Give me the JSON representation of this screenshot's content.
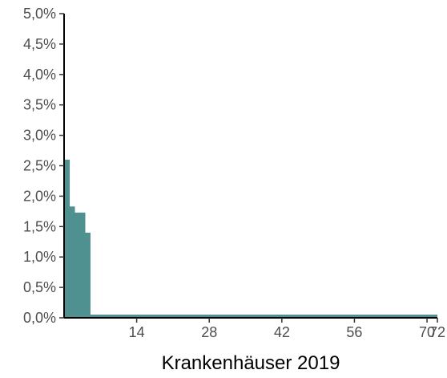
{
  "chart_data": {
    "type": "bar",
    "title": "",
    "xlabel": "Krankenhäuser 2019",
    "ylabel": "",
    "xlim": [
      0,
      72
    ],
    "ylim": [
      0,
      5
    ],
    "x_ticks": [
      14,
      28,
      42,
      56,
      70,
      72
    ],
    "x_tick_labels": [
      "14",
      "28",
      "42",
      "56",
      "70",
      "72"
    ],
    "y_ticks": [
      0,
      0.5,
      1,
      1.5,
      2,
      2.5,
      3,
      3.5,
      4,
      4.5,
      5
    ],
    "y_tick_labels": [
      "0,0%",
      "0,5%",
      "1,0%",
      "1,5%",
      "2,0%",
      "2,5%",
      "3,0%",
      "3,5%",
      "4,0%",
      "4,5%",
      "5,0%"
    ],
    "grid": false,
    "legend": "none",
    "colors": {
      "bar": "#4f9090",
      "axis": "#000000",
      "tick_text": "#4d4d4d"
    },
    "series": [
      {
        "x": [
          1,
          2,
          3,
          4,
          5
        ],
        "values": [
          2.6,
          1.83,
          1.73,
          1.73,
          1.4
        ]
      }
    ]
  }
}
